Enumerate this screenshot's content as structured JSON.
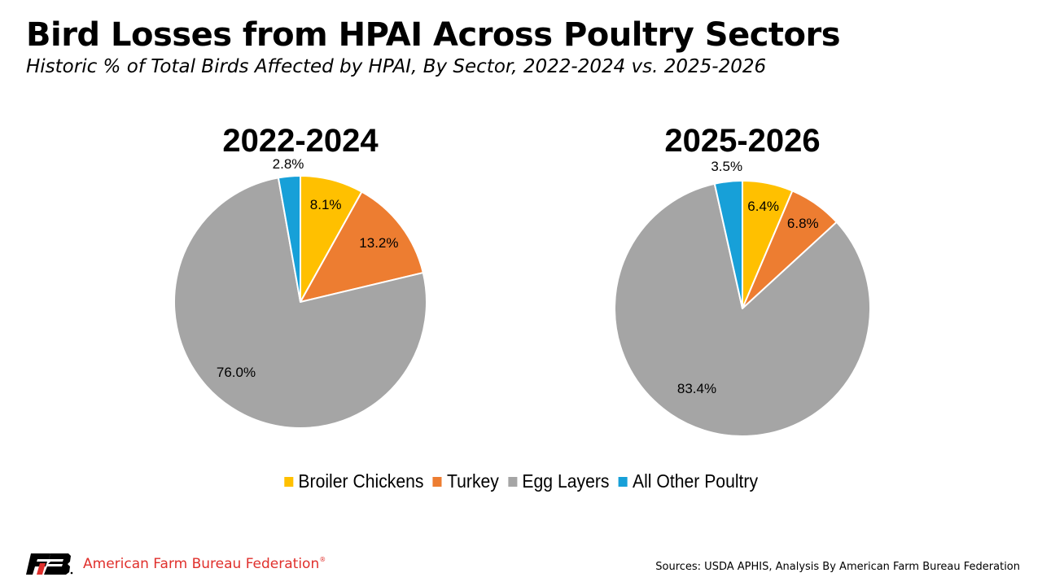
{
  "header": {
    "title": "Bird Losses from HPAI Across Poultry Sectors",
    "subtitle": "Historic % of Total Birds Affected by HPAI, By Sector, 2022-2024 vs. 2025-2026"
  },
  "chart_data": [
    {
      "type": "pie",
      "title": "2022-2024",
      "categories": [
        "Broiler Chickens",
        "Turkey",
        "Egg Layers",
        "All Other Poultry"
      ],
      "values": [
        8.1,
        13.2,
        76.0,
        2.8
      ],
      "labels": [
        "8.1%",
        "13.2%",
        "76.0%",
        "2.8%"
      ],
      "colors": [
        "#ffc000",
        "#ed7d31",
        "#a5a5a5",
        "#17a0d8"
      ],
      "start": "12 o'clock",
      "direction": "clockwise"
    },
    {
      "type": "pie",
      "title": "2025-2026",
      "categories": [
        "Broiler Chickens",
        "Turkey",
        "Egg Layers",
        "All Other Poultry"
      ],
      "values": [
        6.4,
        6.8,
        83.4,
        3.5
      ],
      "labels": [
        "6.4%",
        "6.8%",
        "83.4%",
        "3.5%"
      ],
      "colors": [
        "#ffc000",
        "#ed7d31",
        "#a5a5a5",
        "#17a0d8"
      ],
      "start": "12 o'clock",
      "direction": "clockwise"
    }
  ],
  "legend": {
    "placement": "bottom",
    "items": [
      {
        "label": "Broiler Chickens",
        "color": "#ffc000"
      },
      {
        "label": "Turkey",
        "color": "#ed7d31"
      },
      {
        "label": "Egg Layers",
        "color": "#a5a5a5"
      },
      {
        "label": "All Other Poultry",
        "color": "#17a0d8"
      }
    ]
  },
  "footer": {
    "logo_text": "FB",
    "org_name": "American Farm Bureau Federation",
    "reg_mark": "®",
    "sources": "Sources: USDA APHIS, Analysis By American Farm Bureau Federation",
    "brand_color": "#e0302c"
  }
}
